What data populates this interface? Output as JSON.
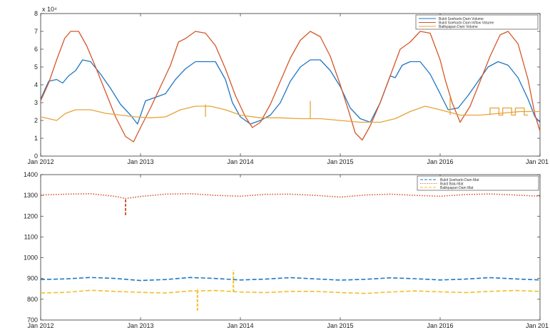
{
  "chart_data": [
    {
      "type": "line",
      "exponent_label": "x 10⁴",
      "xlim": [
        2012,
        2017
      ],
      "ylim": [
        0,
        8
      ],
      "x_ticks": [
        {
          "value": 2012,
          "label": "Jan 2012"
        },
        {
          "value": 2013,
          "label": "Jan 2013"
        },
        {
          "value": 2014,
          "label": "Jan 2014"
        },
        {
          "value": 2015,
          "label": "Jan 2015"
        },
        {
          "value": 2016,
          "label": "Jan 2016"
        },
        {
          "value": 2017,
          "label": "Jan 201"
        }
      ],
      "y_ticks": [
        {
          "value": 0,
          "label": "0"
        },
        {
          "value": 1,
          "label": "1"
        },
        {
          "value": 2,
          "label": "2"
        },
        {
          "value": 3,
          "label": "3"
        },
        {
          "value": 4,
          "label": "4"
        },
        {
          "value": 5,
          "label": "5"
        },
        {
          "value": 6,
          "label": "6"
        },
        {
          "value": 7,
          "label": "7"
        },
        {
          "value": 8,
          "label": "8"
        }
      ],
      "legend_position": "top-right",
      "series": [
        {
          "name": "Bukit Soeharto Dam Volume",
          "color": "#1f77c4",
          "style": "solid",
          "points": [
            [
              2012.0,
              3.2
            ],
            [
              2012.08,
              4.2
            ],
            [
              2012.16,
              4.3
            ],
            [
              2012.22,
              4.1
            ],
            [
              2012.28,
              4.5
            ],
            [
              2012.35,
              4.8
            ],
            [
              2012.42,
              5.4
            ],
            [
              2012.5,
              5.3
            ],
            [
              2012.6,
              4.6
            ],
            [
              2012.7,
              3.8
            ],
            [
              2012.8,
              2.9
            ],
            [
              2012.9,
              2.3
            ],
            [
              2012.97,
              1.8
            ],
            [
              2013.05,
              3.1
            ],
            [
              2013.15,
              3.3
            ],
            [
              2013.25,
              3.5
            ],
            [
              2013.35,
              4.3
            ],
            [
              2013.45,
              4.9
            ],
            [
              2013.55,
              5.3
            ],
            [
              2013.65,
              5.3
            ],
            [
              2013.75,
              5.3
            ],
            [
              2013.85,
              4.3
            ],
            [
              2013.92,
              3.0
            ],
            [
              2014.0,
              2.2
            ],
            [
              2014.1,
              1.8
            ],
            [
              2014.2,
              2.0
            ],
            [
              2014.3,
              2.3
            ],
            [
              2014.4,
              3.0
            ],
            [
              2014.5,
              4.2
            ],
            [
              2014.6,
              5.0
            ],
            [
              2014.7,
              5.4
            ],
            [
              2014.8,
              5.4
            ],
            [
              2014.9,
              4.8
            ],
            [
              2015.0,
              3.9
            ],
            [
              2015.1,
              2.7
            ],
            [
              2015.2,
              2.1
            ],
            [
              2015.3,
              1.9
            ],
            [
              2015.4,
              3.0
            ],
            [
              2015.5,
              4.5
            ],
            [
              2015.55,
              4.4
            ],
            [
              2015.62,
              5.1
            ],
            [
              2015.7,
              5.3
            ],
            [
              2015.8,
              5.3
            ],
            [
              2015.9,
              4.6
            ],
            [
              2016.0,
              3.5
            ],
            [
              2016.08,
              2.6
            ],
            [
              2016.18,
              2.7
            ],
            [
              2016.28,
              3.4
            ],
            [
              2016.38,
              4.2
            ],
            [
              2016.48,
              5.0
            ],
            [
              2016.58,
              5.3
            ],
            [
              2016.68,
              5.1
            ],
            [
              2016.78,
              4.4
            ],
            [
              2016.88,
              3.2
            ],
            [
              2016.95,
              2.2
            ],
            [
              2017.0,
              1.9
            ]
          ]
        },
        {
          "name": "Bukit Soeharto Dam Inflow Volume",
          "color": "#d4572a",
          "style": "solid",
          "points": [
            [
              2012.0,
              3.1
            ],
            [
              2012.08,
              4.1
            ],
            [
              2012.16,
              5.4
            ],
            [
              2012.24,
              6.6
            ],
            [
              2012.3,
              7.0
            ],
            [
              2012.38,
              7.0
            ],
            [
              2012.46,
              6.2
            ],
            [
              2012.55,
              5.0
            ],
            [
              2012.65,
              3.6
            ],
            [
              2012.75,
              2.2
            ],
            [
              2012.85,
              1.1
            ],
            [
              2012.93,
              0.8
            ],
            [
              2013.0,
              1.6
            ],
            [
              2013.1,
              2.7
            ],
            [
              2013.2,
              3.9
            ],
            [
              2013.3,
              5.1
            ],
            [
              2013.38,
              6.4
            ],
            [
              2013.45,
              6.6
            ],
            [
              2013.55,
              7.0
            ],
            [
              2013.65,
              6.9
            ],
            [
              2013.75,
              6.2
            ],
            [
              2013.85,
              4.9
            ],
            [
              2013.95,
              3.4
            ],
            [
              2014.05,
              2.2
            ],
            [
              2014.12,
              1.6
            ],
            [
              2014.2,
              1.9
            ],
            [
              2014.3,
              2.9
            ],
            [
              2014.4,
              4.2
            ],
            [
              2014.5,
              5.5
            ],
            [
              2014.6,
              6.5
            ],
            [
              2014.7,
              7.0
            ],
            [
              2014.8,
              6.7
            ],
            [
              2014.9,
              5.6
            ],
            [
              2015.0,
              4.0
            ],
            [
              2015.08,
              2.6
            ],
            [
              2015.15,
              1.3
            ],
            [
              2015.22,
              0.9
            ],
            [
              2015.3,
              1.7
            ],
            [
              2015.4,
              3.0
            ],
            [
              2015.5,
              4.5
            ],
            [
              2015.6,
              6.0
            ],
            [
              2015.7,
              6.4
            ],
            [
              2015.8,
              7.0
            ],
            [
              2015.9,
              6.9
            ],
            [
              2016.0,
              5.4
            ],
            [
              2016.05,
              4.3
            ],
            [
              2016.12,
              3.0
            ],
            [
              2016.2,
              1.9
            ],
            [
              2016.3,
              2.8
            ],
            [
              2016.4,
              4.2
            ],
            [
              2016.5,
              5.6
            ],
            [
              2016.6,
              6.8
            ],
            [
              2016.68,
              7.0
            ],
            [
              2016.78,
              6.3
            ],
            [
              2016.88,
              4.3
            ],
            [
              2016.95,
              2.3
            ],
            [
              2017.0,
              1.4
            ]
          ]
        },
        {
          "name": "Balikpapan Dam Volume",
          "color": "#e8a33a",
          "style": "solid",
          "points": [
            [
              2012.0,
              2.2
            ],
            [
              2012.08,
              2.1
            ],
            [
              2012.16,
              2.0
            ],
            [
              2012.25,
              2.4
            ],
            [
              2012.35,
              2.6
            ],
            [
              2012.5,
              2.6
            ],
            [
              2012.65,
              2.4
            ],
            [
              2012.8,
              2.3
            ],
            [
              2012.95,
              2.2
            ],
            [
              2013.1,
              2.15
            ],
            [
              2013.25,
              2.2
            ],
            [
              2013.4,
              2.6
            ],
            [
              2013.55,
              2.8
            ],
            [
              2013.7,
              2.8
            ],
            [
              2013.85,
              2.6
            ],
            [
              2014.0,
              2.3
            ],
            [
              2014.2,
              2.15
            ],
            [
              2014.4,
              2.15
            ],
            [
              2014.6,
              2.1
            ],
            [
              2014.8,
              2.1
            ],
            [
              2015.0,
              2.0
            ],
            [
              2015.2,
              1.9
            ],
            [
              2015.4,
              1.9
            ],
            [
              2015.55,
              2.1
            ],
            [
              2015.7,
              2.5
            ],
            [
              2015.85,
              2.8
            ],
            [
              2016.0,
              2.6
            ],
            [
              2016.2,
              2.3
            ],
            [
              2016.4,
              2.3
            ],
            [
              2016.6,
              2.4
            ],
            [
              2016.8,
              2.5
            ],
            [
              2017.0,
              2.5
            ]
          ],
          "spikes": [
            {
              "x": 2013.65,
              "top": 2.9,
              "bottom": 2.2
            },
            {
              "x": 2014.7,
              "top": 3.1,
              "bottom": 2.1
            },
            {
              "x": 2016.1,
              "top": 3.3,
              "bottom": 2.3
            }
          ],
          "steps": [
            {
              "x0": 2016.5,
              "x1": 2016.88,
              "high": 2.7,
              "low": 2.3
            }
          ]
        }
      ]
    },
    {
      "type": "line",
      "xlim": [
        2012,
        2017
      ],
      "ylim": [
        700,
        1400
      ],
      "x_ticks": [
        {
          "value": 2012,
          "label": "Jan 2012"
        },
        {
          "value": 2013,
          "label": "Jan 2013"
        },
        {
          "value": 2014,
          "label": "Jan 2014"
        },
        {
          "value": 2015,
          "label": "Jan 2015"
        },
        {
          "value": 2016,
          "label": "Jan 2016"
        },
        {
          "value": 2017,
          "label": "Jan 201"
        }
      ],
      "y_ticks": [
        {
          "value": 700,
          "label": "700"
        },
        {
          "value": 800,
          "label": "800"
        },
        {
          "value": 900,
          "label": "900"
        },
        {
          "value": 1000,
          "label": "1000"
        },
        {
          "value": 1100,
          "label": "1100"
        },
        {
          "value": 1200,
          "label": "1200"
        },
        {
          "value": 1300,
          "label": "1300"
        },
        {
          "value": 1400,
          "label": "1400"
        }
      ],
      "legend_position": "top-right",
      "series": [
        {
          "name": "Bukit Soeharto Dam Mat",
          "color": "#1f77c4",
          "style": "dashed",
          "points": [
            [
              2012.0,
              895
            ],
            [
              2012.25,
              898
            ],
            [
              2012.5,
              905
            ],
            [
              2012.75,
              900
            ],
            [
              2013.0,
              890
            ],
            [
              2013.25,
              895
            ],
            [
              2013.5,
              905
            ],
            [
              2013.75,
              900
            ],
            [
              2014.0,
              893
            ],
            [
              2014.25,
              897
            ],
            [
              2014.5,
              904
            ],
            [
              2014.75,
              898
            ],
            [
              2015.0,
              892
            ],
            [
              2015.25,
              896
            ],
            [
              2015.5,
              903
            ],
            [
              2015.75,
              899
            ],
            [
              2016.0,
              893
            ],
            [
              2016.25,
              897
            ],
            [
              2016.5,
              904
            ],
            [
              2016.75,
              898
            ],
            [
              2017.0,
              893
            ]
          ]
        },
        {
          "name": "Bukit Batu Mat",
          "color": "#d4572a",
          "style": "dotted",
          "points": [
            [
              2012.0,
              1302
            ],
            [
              2012.25,
              1306
            ],
            [
              2012.5,
              1308
            ],
            [
              2012.75,
              1295
            ],
            [
              2012.85,
              1285
            ],
            [
              2013.0,
              1295
            ],
            [
              2013.25,
              1306
            ],
            [
              2013.5,
              1308
            ],
            [
              2013.75,
              1300
            ],
            [
              2014.0,
              1296
            ],
            [
              2014.25,
              1305
            ],
            [
              2014.5,
              1306
            ],
            [
              2014.75,
              1300
            ],
            [
              2015.0,
              1292
            ],
            [
              2015.25,
              1302
            ],
            [
              2015.5,
              1306
            ],
            [
              2015.75,
              1300
            ],
            [
              2016.0,
              1296
            ],
            [
              2016.25,
              1304
            ],
            [
              2016.5,
              1307
            ],
            [
              2016.75,
              1302
            ],
            [
              2017.0,
              1296
            ]
          ],
          "spikes": [
            {
              "x": 2012.85,
              "top": 1285,
              "bottom": 1205
            }
          ]
        },
        {
          "name": "Balikpapan Dam Mat",
          "color": "#f0c020",
          "style": "dashed",
          "points": [
            [
              2012.0,
              830
            ],
            [
              2012.25,
              833
            ],
            [
              2012.5,
              843
            ],
            [
              2012.75,
              838
            ],
            [
              2013.0,
              833
            ],
            [
              2013.25,
              830
            ],
            [
              2013.5,
              840
            ],
            [
              2013.75,
              842
            ],
            [
              2014.0,
              835
            ],
            [
              2014.25,
              832
            ],
            [
              2014.5,
              838
            ],
            [
              2014.75,
              838
            ],
            [
              2015.0,
              832
            ],
            [
              2015.25,
              828
            ],
            [
              2015.5,
              835
            ],
            [
              2015.75,
              840
            ],
            [
              2016.0,
              836
            ],
            [
              2016.25,
              832
            ],
            [
              2016.5,
              838
            ],
            [
              2016.75,
              842
            ],
            [
              2017.0,
              838
            ]
          ],
          "spikes": [
            {
              "x": 2013.57,
              "top": 850,
              "bottom": 745
            },
            {
              "x": 2013.93,
              "top": 940,
              "bottom": 835
            }
          ]
        }
      ]
    }
  ]
}
